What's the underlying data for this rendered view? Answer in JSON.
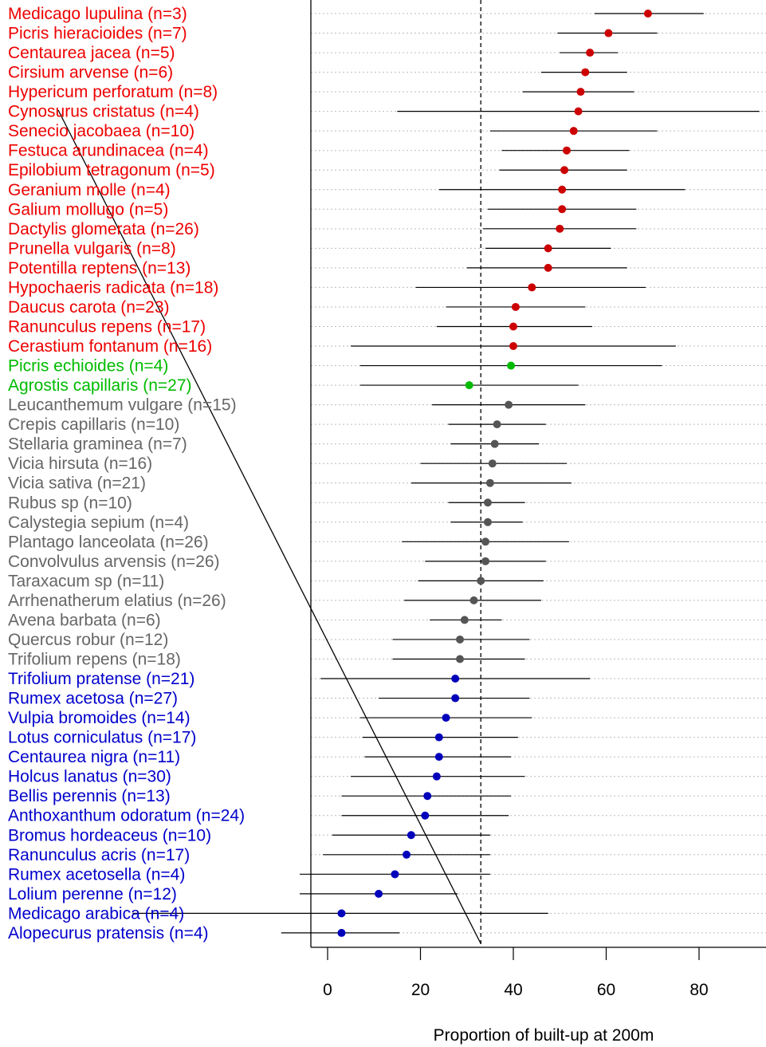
{
  "chart_data": {
    "type": "scatter",
    "subtype": "dot-plot-with-error-bars",
    "xlabel": "Proportion of built-up at 200m",
    "x_ticks": [
      0,
      20,
      40,
      60,
      80
    ],
    "xlim": [
      -4,
      95
    ],
    "reference_line_x": 33,
    "grid": "horizontal dotted",
    "group_colors": {
      "red": "#ee0000",
      "green": "#00bb00",
      "gray": "#666666",
      "blue": "#0000cc"
    },
    "point_colors": {
      "red": "#cc0000",
      "green": "#00bb00",
      "gray": "#555555",
      "blue": "#0000bb"
    },
    "species": [
      {
        "label": "Medicago lupulina (n=3)",
        "group": "red",
        "value": 69,
        "low": 57.5,
        "high": 81
      },
      {
        "label": "Picris hieracioides (n=7)",
        "group": "red",
        "value": 60.5,
        "low": 49.5,
        "high": 71
      },
      {
        "label": "Centaurea jacea (n=5)",
        "group": "red",
        "value": 56.5,
        "low": 50,
        "high": 62.5
      },
      {
        "label": "Cirsium arvense (n=6)",
        "group": "red",
        "value": 55.5,
        "low": 46,
        "high": 64.5
      },
      {
        "label": "Hypericum perforatum (n=8)",
        "group": "red",
        "value": 54.5,
        "low": 42,
        "high": 66
      },
      {
        "label": "Cynosurus cristatus (n=4)",
        "group": "red",
        "value": 54,
        "low": 15,
        "high": 93
      },
      {
        "label": "Senecio jacobaea (n=10)",
        "group": "red",
        "value": 53,
        "low": 35,
        "high": 71
      },
      {
        "label": "Festuca arundinacea (n=4)",
        "group": "red",
        "value": 51.5,
        "low": 37.5,
        "high": 65
      },
      {
        "label": "Epilobium tetragonum (n=5)",
        "group": "red",
        "value": 51,
        "low": 37,
        "high": 64.5
      },
      {
        "label": "Geranium molle (n=4)",
        "group": "red",
        "value": 50.5,
        "low": 24,
        "high": 77
      },
      {
        "label": "Galium mollugo (n=5)",
        "group": "red",
        "value": 50.5,
        "low": 34.5,
        "high": 66.5
      },
      {
        "label": "Dactylis glomerata (n=26)",
        "group": "red",
        "value": 50,
        "low": 33.5,
        "high": 66.5
      },
      {
        "label": "Prunella vulgaris (n=8)",
        "group": "red",
        "value": 47.5,
        "low": 34,
        "high": 61
      },
      {
        "label": "Potentilla reptens (n=13)",
        "group": "red",
        "value": 47.5,
        "low": 30,
        "high": 64.5
      },
      {
        "label": "Hypochaeris radicata (n=18)",
        "group": "red",
        "value": 44,
        "low": 19,
        "high": 68.5
      },
      {
        "label": "Daucus carota (n=23)",
        "group": "red",
        "value": 40.5,
        "low": 25.5,
        "high": 55.5
      },
      {
        "label": "Ranunculus repens (n=17)",
        "group": "red",
        "value": 40,
        "low": 23.5,
        "high": 57
      },
      {
        "label": "Cerastium fontanum (n=16)",
        "group": "red",
        "value": 40,
        "low": 5,
        "high": 75
      },
      {
        "label": "Picris echioides (n=4)",
        "group": "green",
        "value": 39.5,
        "low": 7,
        "high": 72
      },
      {
        "label": "Agrostis capillaris (n=27)",
        "group": "green",
        "value": 30.5,
        "low": 7,
        "high": 54
      },
      {
        "label": "Leucanthemum vulgare (n=15)",
        "group": "gray",
        "value": 39,
        "low": 22.5,
        "high": 55.5
      },
      {
        "label": "Crepis capillaris (n=10)",
        "group": "gray",
        "value": 36.5,
        "low": 26,
        "high": 47
      },
      {
        "label": "Stellaria graminea (n=7)",
        "group": "gray",
        "value": 36,
        "low": 26.5,
        "high": 45.5
      },
      {
        "label": "Vicia hirsuta (n=16)",
        "group": "gray",
        "value": 35.5,
        "low": 20,
        "high": 51.5
      },
      {
        "label": "Vicia sativa (n=21)",
        "group": "gray",
        "value": 35,
        "low": 18,
        "high": 52.5
      },
      {
        "label": "Rubus sp (n=10)",
        "group": "gray",
        "value": 34.5,
        "low": 26,
        "high": 42.5
      },
      {
        "label": "Calystegia sepium (n=4)",
        "group": "gray",
        "value": 34.5,
        "low": 26.5,
        "high": 42
      },
      {
        "label": "Plantago lanceolata (n=26)",
        "group": "gray",
        "value": 34,
        "low": 16,
        "high": 52
      },
      {
        "label": "Convolvulus arvensis (n=26)",
        "group": "gray",
        "value": 34,
        "low": 21,
        "high": 47
      },
      {
        "label": "Taraxacum sp (n=11)",
        "group": "gray",
        "value": 33,
        "low": 19.5,
        "high": 46.5
      },
      {
        "label": "Arrhenatherum elatius (n=26)",
        "group": "gray",
        "value": 31.5,
        "low": 16.5,
        "high": 46
      },
      {
        "label": "Avena barbata (n=6)",
        "group": "gray",
        "value": 29.5,
        "low": 22,
        "high": 37.5
      },
      {
        "label": "Quercus  robur (n=12)",
        "group": "gray",
        "value": 28.5,
        "low": 14,
        "high": 43.5
      },
      {
        "label": "Trifolium repens (n=18)",
        "group": "gray",
        "value": 28.5,
        "low": 14,
        "high": 42.5
      },
      {
        "label": "Trifolium pratense (n=21)",
        "group": "blue",
        "value": 27.5,
        "low": -1.5,
        "high": 56.5
      },
      {
        "label": "Rumex acetosa (n=27)",
        "group": "blue",
        "value": 27.5,
        "low": 11,
        "high": 43.5
      },
      {
        "label": "Vulpia bromoides (n=14)",
        "group": "blue",
        "value": 25.5,
        "low": 7,
        "high": 44
      },
      {
        "label": "Lotus corniculatus (n=17)",
        "group": "blue",
        "value": 24,
        "low": 7.5,
        "high": 41
      },
      {
        "label": "Centaurea nigra (n=11)",
        "group": "blue",
        "value": 24,
        "low": 8,
        "high": 39.5
      },
      {
        "label": "Holcus lanatus (n=30)",
        "group": "blue",
        "value": 23.5,
        "low": 5,
        "high": 42.5
      },
      {
        "label": "Bellis perennis (n=13)",
        "group": "blue",
        "value": 21.5,
        "low": 3,
        "high": 39.5
      },
      {
        "label": "Anthoxanthum odoratum (n=24)",
        "group": "blue",
        "value": 21,
        "low": 3,
        "high": 39
      },
      {
        "label": "Bromus hordeaceus (n=10)",
        "group": "blue",
        "value": 18,
        "low": 1,
        "high": 35
      },
      {
        "label": "Ranunculus acris (n=17)",
        "group": "blue",
        "value": 17,
        "low": -1,
        "high": 35
      },
      {
        "label": "Rumex acetosella (n=4)",
        "group": "blue",
        "value": 14.5,
        "low": -6,
        "high": 35
      },
      {
        "label": "Lolium perenne (n=12)",
        "group": "blue",
        "value": 11,
        "low": -6,
        "high": 28
      },
      {
        "label": "Medicago arabica (n=4)",
        "group": "blue",
        "value": 3,
        "low": -42,
        "high": 47.5
      },
      {
        "label": "Alopecurus pratensis (n=4)",
        "group": "blue",
        "value": 3,
        "low": -10,
        "high": 15.5
      }
    ]
  }
}
